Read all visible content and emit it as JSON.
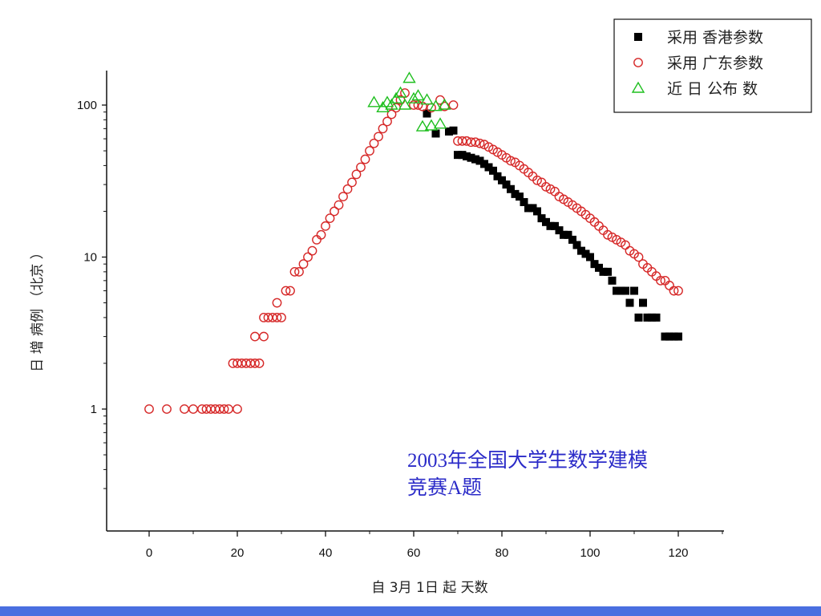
{
  "colors": {
    "hk_series": "#000000",
    "gd_series": "#d62828",
    "recent_series": "#1fbf1f",
    "annotation": "#2b2bc8",
    "bottom_bar": "#4a6fe0"
  },
  "annotation": {
    "line1": "2003年全国大学生数学建模",
    "line2": "竞赛A题"
  },
  "chart_data": {
    "type": "scatter",
    "xlabel": "自 3月 1日 起 天数",
    "ylabel": "日 增 病例 （北京 ）",
    "x_ticks": [
      0,
      20,
      40,
      60,
      80,
      100,
      120
    ],
    "y_ticks": [
      1,
      10,
      100
    ],
    "y_scale": "log",
    "legend_position": "top-right",
    "series": [
      {
        "name": "采用 香港参数",
        "marker": "filled-square",
        "color": "#000000",
        "points": [
          [
            63,
            88
          ],
          [
            65,
            65
          ],
          [
            68,
            67
          ],
          [
            69,
            68
          ],
          [
            70,
            47
          ],
          [
            71,
            47
          ],
          [
            72,
            46
          ],
          [
            73,
            45
          ],
          [
            74,
            44
          ],
          [
            75,
            43
          ],
          [
            76,
            41
          ],
          [
            77,
            39
          ],
          [
            78,
            37
          ],
          [
            79,
            34
          ],
          [
            80,
            32
          ],
          [
            81,
            30
          ],
          [
            82,
            28
          ],
          [
            83,
            26
          ],
          [
            84,
            25
          ],
          [
            85,
            23
          ],
          [
            86,
            21
          ],
          [
            87,
            21
          ],
          [
            88,
            20
          ],
          [
            89,
            18
          ],
          [
            90,
            17
          ],
          [
            91,
            16
          ],
          [
            92,
            16
          ],
          [
            93,
            15
          ],
          [
            94,
            14
          ],
          [
            95,
            14
          ],
          [
            96,
            13
          ],
          [
            97,
            12
          ],
          [
            98,
            11
          ],
          [
            99,
            10.5
          ],
          [
            100,
            10
          ],
          [
            101,
            9
          ],
          [
            102,
            8.5
          ],
          [
            103,
            8
          ],
          [
            104,
            8
          ],
          [
            105,
            7
          ],
          [
            106,
            6
          ],
          [
            107,
            6
          ],
          [
            108,
            6
          ],
          [
            109,
            5
          ],
          [
            110,
            6
          ],
          [
            111,
            4
          ],
          [
            112,
            5
          ],
          [
            113,
            4
          ],
          [
            114,
            4
          ],
          [
            115,
            4
          ],
          [
            117,
            3
          ],
          [
            118,
            3
          ],
          [
            119,
            3
          ],
          [
            120,
            3
          ]
        ]
      },
      {
        "name": "采用 广东参数",
        "marker": "open-circle",
        "color": "#d62828",
        "points": [
          [
            0,
            1
          ],
          [
            4,
            1
          ],
          [
            8,
            1
          ],
          [
            10,
            1
          ],
          [
            12,
            1
          ],
          [
            13,
            1
          ],
          [
            14,
            1
          ],
          [
            15,
            1
          ],
          [
            16,
            1
          ],
          [
            17,
            1
          ],
          [
            18,
            1
          ],
          [
            20,
            1
          ],
          [
            19,
            2
          ],
          [
            20,
            2
          ],
          [
            21,
            2
          ],
          [
            22,
            2
          ],
          [
            23,
            2
          ],
          [
            24,
            2
          ],
          [
            25,
            2
          ],
          [
            24,
            3
          ],
          [
            26,
            3
          ],
          [
            26,
            4
          ],
          [
            27,
            4
          ],
          [
            28,
            4
          ],
          [
            29,
            4
          ],
          [
            29,
            5
          ],
          [
            30,
            4
          ],
          [
            31,
            6
          ],
          [
            32,
            6
          ],
          [
            33,
            8
          ],
          [
            34,
            8
          ],
          [
            35,
            9
          ],
          [
            36,
            10
          ],
          [
            37,
            11
          ],
          [
            38,
            13
          ],
          [
            39,
            14
          ],
          [
            40,
            16
          ],
          [
            41,
            18
          ],
          [
            42,
            20
          ],
          [
            43,
            22
          ],
          [
            44,
            25
          ],
          [
            45,
            28
          ],
          [
            46,
            31
          ],
          [
            47,
            35
          ],
          [
            48,
            39
          ],
          [
            49,
            44
          ],
          [
            50,
            50
          ],
          [
            51,
            56
          ],
          [
            52,
            62
          ],
          [
            53,
            70
          ],
          [
            54,
            78
          ],
          [
            55,
            87
          ],
          [
            56,
            96
          ],
          [
            57,
            108
          ],
          [
            58,
            120
          ],
          [
            60,
            100
          ],
          [
            61,
            100
          ],
          [
            62,
            98
          ],
          [
            64,
            96
          ],
          [
            66,
            108
          ],
          [
            67,
            98
          ],
          [
            69,
            100
          ],
          [
            70,
            58
          ],
          [
            71,
            58
          ],
          [
            72,
            58
          ],
          [
            73,
            57
          ],
          [
            74,
            57
          ],
          [
            75,
            56
          ],
          [
            76,
            55
          ],
          [
            77,
            53
          ],
          [
            78,
            51
          ],
          [
            79,
            49
          ],
          [
            80,
            47
          ],
          [
            81,
            45
          ],
          [
            82,
            43
          ],
          [
            83,
            42
          ],
          [
            84,
            40
          ],
          [
            85,
            38
          ],
          [
            86,
            36
          ],
          [
            87,
            34
          ],
          [
            88,
            32
          ],
          [
            89,
            31
          ],
          [
            90,
            29
          ],
          [
            91,
            28
          ],
          [
            92,
            27
          ],
          [
            93,
            25
          ],
          [
            94,
            24
          ],
          [
            95,
            23
          ],
          [
            96,
            22
          ],
          [
            97,
            21
          ],
          [
            98,
            20
          ],
          [
            99,
            19
          ],
          [
            100,
            18
          ],
          [
            101,
            17
          ],
          [
            102,
            16
          ],
          [
            103,
            15
          ],
          [
            104,
            14
          ],
          [
            105,
            13.5
          ],
          [
            106,
            13
          ],
          [
            107,
            12.5
          ],
          [
            108,
            12
          ],
          [
            109,
            11
          ],
          [
            110,
            10.5
          ],
          [
            111,
            10
          ],
          [
            112,
            9
          ],
          [
            113,
            8.5
          ],
          [
            114,
            8
          ],
          [
            115,
            7.5
          ],
          [
            116,
            7
          ],
          [
            117,
            7
          ],
          [
            118,
            6.5
          ],
          [
            119,
            6
          ],
          [
            120,
            6
          ]
        ]
      },
      {
        "name": "近 日 公布 数",
        "marker": "open-triangle",
        "color": "#1fbf1f",
        "points": [
          [
            51,
            104
          ],
          [
            53,
            96
          ],
          [
            54,
            104
          ],
          [
            55,
            100
          ],
          [
            56,
            110
          ],
          [
            57,
            120
          ],
          [
            58,
            100
          ],
          [
            59,
            150
          ],
          [
            60,
            110
          ],
          [
            61,
            115
          ],
          [
            62,
            72
          ],
          [
            63,
            108
          ],
          [
            64,
            73
          ],
          [
            65,
            98
          ],
          [
            66,
            75
          ],
          [
            67,
            100
          ]
        ]
      }
    ]
  }
}
